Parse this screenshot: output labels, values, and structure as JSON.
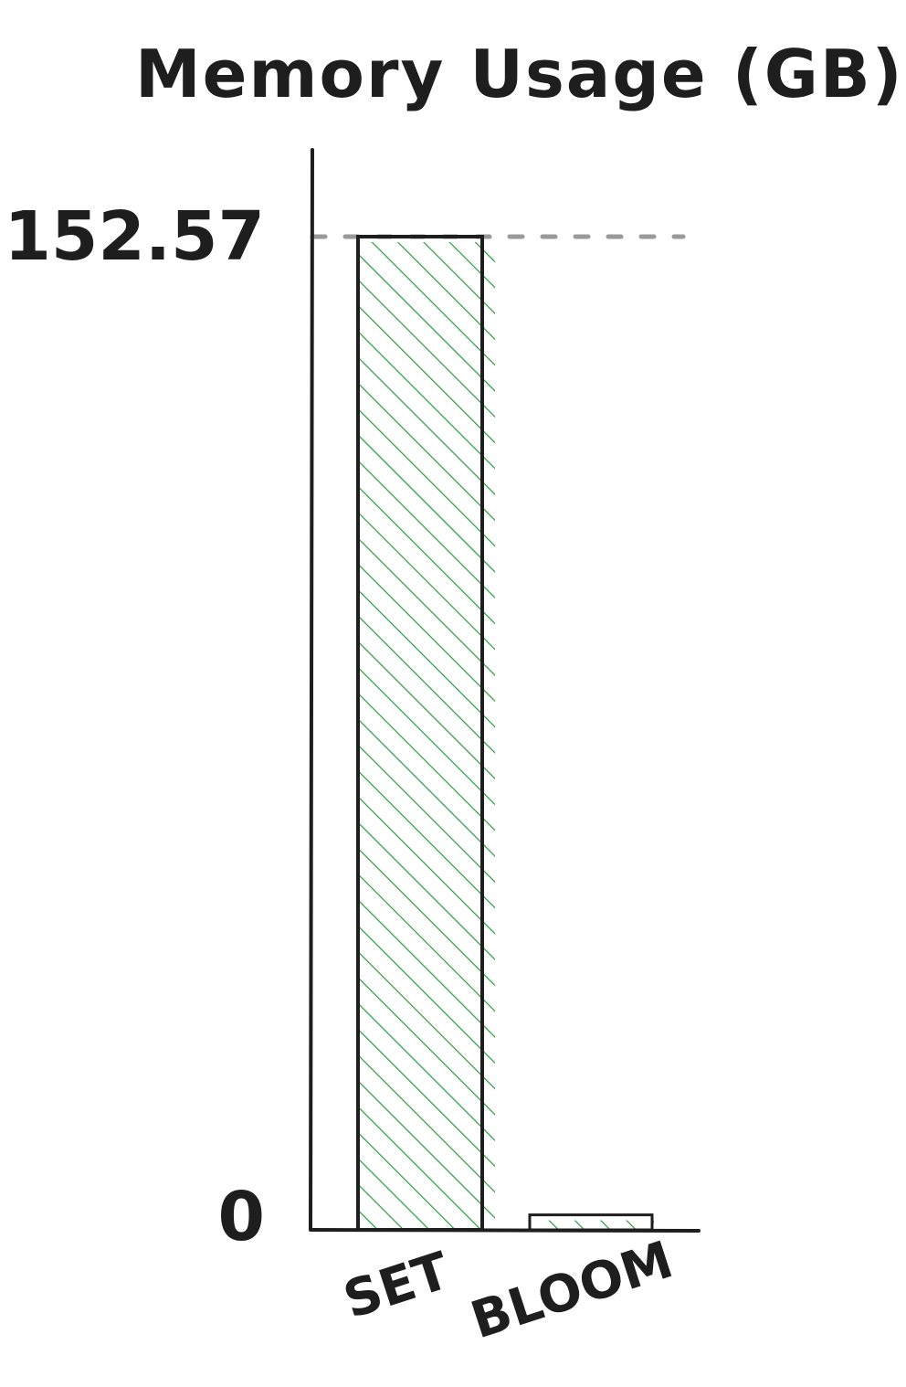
{
  "chart_data": {
    "type": "bar",
    "title": "Memory Usage (GB)",
    "xlabel": "",
    "ylabel": "",
    "categories": [
      "SET",
      "BLOOM"
    ],
    "values": [
      152.57,
      2.3
    ],
    "ylim": [
      0,
      152.57
    ],
    "y_tick_labels": [
      "152.57",
      "0"
    ],
    "reference_line": {
      "value": 152.57,
      "style": "dashed"
    },
    "grid": false,
    "legend": "none",
    "colors": {
      "bar_fill": "#2f9e44",
      "bar_stroke": "#1e1e1e",
      "axis": "#1e1e1e",
      "reference_line": "#999999"
    }
  }
}
